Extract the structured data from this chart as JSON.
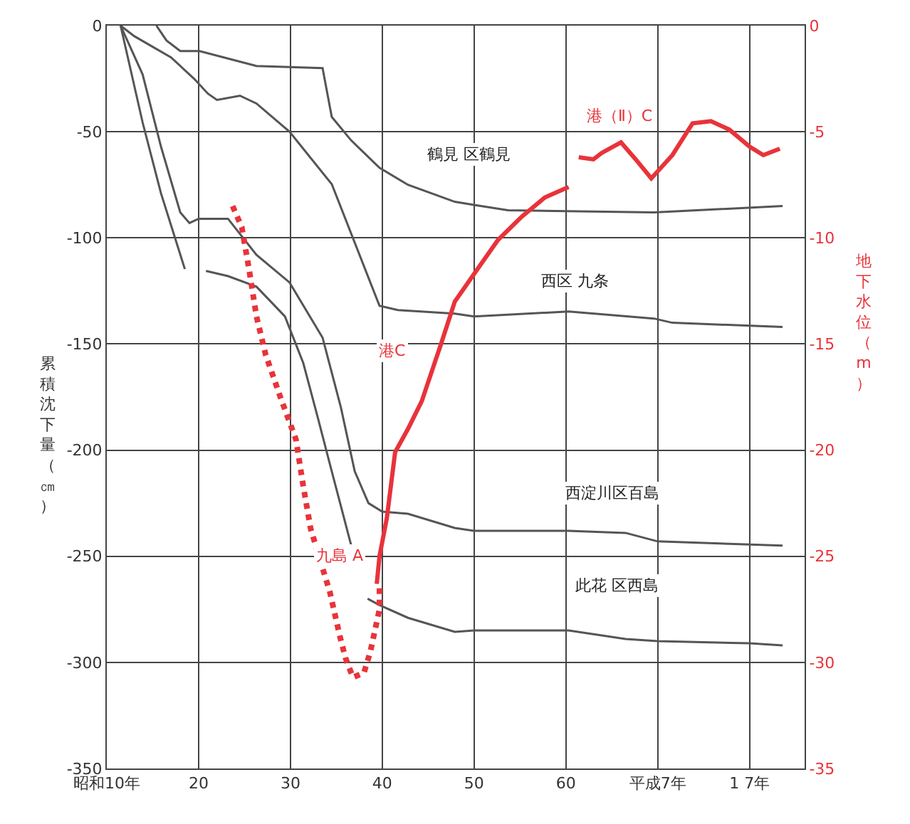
{
  "chart_data": {
    "type": "line",
    "ylabel": "累積沈下量（㎝）",
    "y2label": "地下水位（m）",
    "xlim": [
      10,
      86
    ],
    "xticks": [
      {
        "value": 10,
        "label": "昭和10年"
      },
      20,
      30,
      40,
      50,
      60,
      {
        "value": 70,
        "label": "平成7年"
      },
      {
        "value": 80,
        "label": "1 7年"
      }
    ],
    "ylim": [
      -350,
      0
    ],
    "yticks": [
      0,
      -50,
      -100,
      -150,
      -200,
      -250,
      -300,
      -350
    ],
    "y2lim": [
      -35,
      0
    ],
    "y2ticks": [
      0,
      -5,
      -10,
      -15,
      -20,
      -25,
      -30,
      -35
    ],
    "grid": true,
    "marker": "none",
    "series": [
      {
        "color": "#555555",
        "x": [
          15.4,
          16.5,
          18.0,
          20.1,
          26.3,
          33.5,
          34.5,
          36.6,
          39.7,
          42.8,
          47.9,
          50,
          53.7,
          69.6,
          83.6
        ],
        "values": [
          0,
          -7,
          -12,
          -12,
          -19,
          -20,
          -43,
          -54,
          -67,
          -75,
          -83,
          -84.5,
          -87,
          -88,
          -85
        ]
      },
      {
        "color": "#555555",
        "x": [
          11.5,
          13,
          17,
          19.5,
          21,
          22,
          24.5,
          26.3,
          29.9,
          34.5,
          39.7,
          41.7,
          47.9,
          50,
          60.3,
          69.6,
          71.6,
          83.6
        ],
        "values": [
          0,
          -5,
          -15,
          -25,
          -32,
          -35,
          -33,
          -36.7,
          -50,
          -74.7,
          -132,
          -134,
          -135.7,
          -137,
          -134.7,
          -138,
          -140,
          -142
        ]
      },
      {
        "color": "#555555",
        "x": [
          11.5,
          13.9,
          15.9,
          18,
          19,
          20,
          23.2,
          26.3,
          29.9,
          33.5,
          35.5,
          37,
          38.5,
          40,
          42.8,
          47.9,
          50,
          60.3,
          66.5,
          70,
          83.6
        ],
        "values": [
          0,
          -23,
          -57,
          -88,
          -93,
          -91,
          -91,
          -108,
          -121,
          -147,
          -180,
          -210,
          -225,
          -229,
          -230,
          -236.7,
          -238,
          -238,
          -239,
          -243,
          -245
        ]
      },
      {
        "color": "#555555",
        "x": [
          11.5,
          13.9,
          15.9,
          18.5,
          19.5,
          20.8,
          23.2,
          26.3,
          29.4,
          31.4,
          33,
          34.5,
          36.6,
          37.5,
          38.4,
          39.7,
          42.8,
          47.9,
          50,
          60.3,
          66.5,
          70,
          80,
          83.6
        ],
        "values": [
          0,
          -45.6,
          -79,
          -114.7,
          null,
          -115.6,
          -118,
          -123,
          -137,
          -159,
          -185,
          -210,
          -244.6,
          null,
          -270,
          -273,
          -279,
          -285.6,
          -285,
          -285,
          -289,
          -290,
          -291,
          -292
        ]
      },
      {
        "color": "#e8333a",
        "axis": "y2",
        "line_style": "dotted",
        "x": [
          23.7,
          24.7,
          25.5,
          26.3,
          27.3,
          28.9,
          30.6,
          31.4,
          32.2,
          34.3,
          35.4,
          36,
          36.8,
          38,
          38.7,
          39.7,
          39.7
        ],
        "values": [
          -8.5,
          -9.5,
          -11.5,
          -13.7,
          -15.5,
          -17.5,
          -19.5,
          -21.7,
          -23.7,
          -26.7,
          -28.8,
          -29.8,
          -30.7,
          -30.5,
          -29.5,
          -27.5,
          -26.5
        ]
      },
      {
        "color": "#e8333a",
        "axis": "y2",
        "x": [
          39.4,
          39.7,
          40.5,
          41.4,
          42.8,
          44.3,
          46.4,
          47.9,
          50,
          52.6,
          55.2,
          57.7,
          60.3
        ],
        "values": [
          -26.3,
          -25,
          -23.2,
          -20.1,
          -19,
          -17.7,
          -15,
          -13,
          -11.7,
          -10.1,
          -9,
          -8.1,
          -7.6
        ]
      },
      {
        "color": "#e8333a",
        "axis": "y2",
        "x": [
          61.4,
          63,
          63.9,
          66,
          67.6,
          69.3,
          71.6,
          73.8,
          75.8,
          77.8,
          80,
          81.5,
          83.3
        ],
        "values": [
          -6.2,
          -6.3,
          -6,
          -5.5,
          -6.3,
          -7.2,
          -6.1,
          -4.6,
          -4.5,
          -4.9,
          -5.7,
          -6.1,
          -5.8
        ]
      }
    ],
    "annotations": [
      "鶴見 区鶴見",
      "西区 九条",
      "西淀川区百島",
      "此花 区西島",
      "港（Ⅱ）C",
      "港C",
      "九島 A"
    ]
  }
}
